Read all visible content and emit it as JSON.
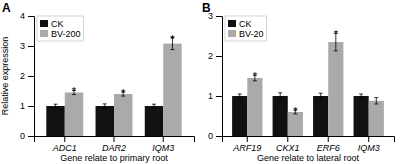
{
  "chart_data": [
    {
      "type": "bar",
      "title": "A",
      "categories": [
        "ADC1",
        "DAR2",
        "IQM3"
      ],
      "series": [
        {
          "name": "CK",
          "color": "#111111",
          "values": [
            1.0,
            1.0,
            1.0
          ],
          "errors": [
            0.06,
            0.07,
            0.06
          ]
        },
        {
          "name": "BV-200",
          "color": "#aaaaaa",
          "values": [
            1.45,
            1.4,
            3.08
          ],
          "errors": [
            0.07,
            0.07,
            0.2
          ],
          "annotations": [
            "*",
            "*",
            "*"
          ]
        }
      ],
      "xlabel": "Gene relate to primary root",
      "ylabel": "Relative expression",
      "ylim": [
        0,
        4
      ],
      "yticks": [
        0,
        1,
        2,
        3,
        4
      ],
      "legend": "upper left"
    },
    {
      "type": "bar",
      "title": "B",
      "categories": [
        "ARF19",
        "CKX1",
        "ERF6",
        "IQM3"
      ],
      "series": [
        {
          "name": "CK",
          "color": "#111111",
          "values": [
            1.0,
            1.0,
            1.0,
            1.0
          ],
          "errors": [
            0.05,
            0.08,
            0.07,
            0.05
          ]
        },
        {
          "name": "BV-20",
          "color": "#aaaaaa",
          "values": [
            1.45,
            0.6,
            2.35,
            0.88
          ],
          "errors": [
            0.07,
            0.05,
            0.22,
            0.08
          ],
          "annotations": [
            "*",
            "*",
            "*",
            null
          ]
        }
      ],
      "xlabel": "Gene relate to lateral root",
      "ylim": [
        0,
        3
      ],
      "yticks": [
        0,
        1,
        2,
        3
      ],
      "legend": "upper left"
    }
  ]
}
